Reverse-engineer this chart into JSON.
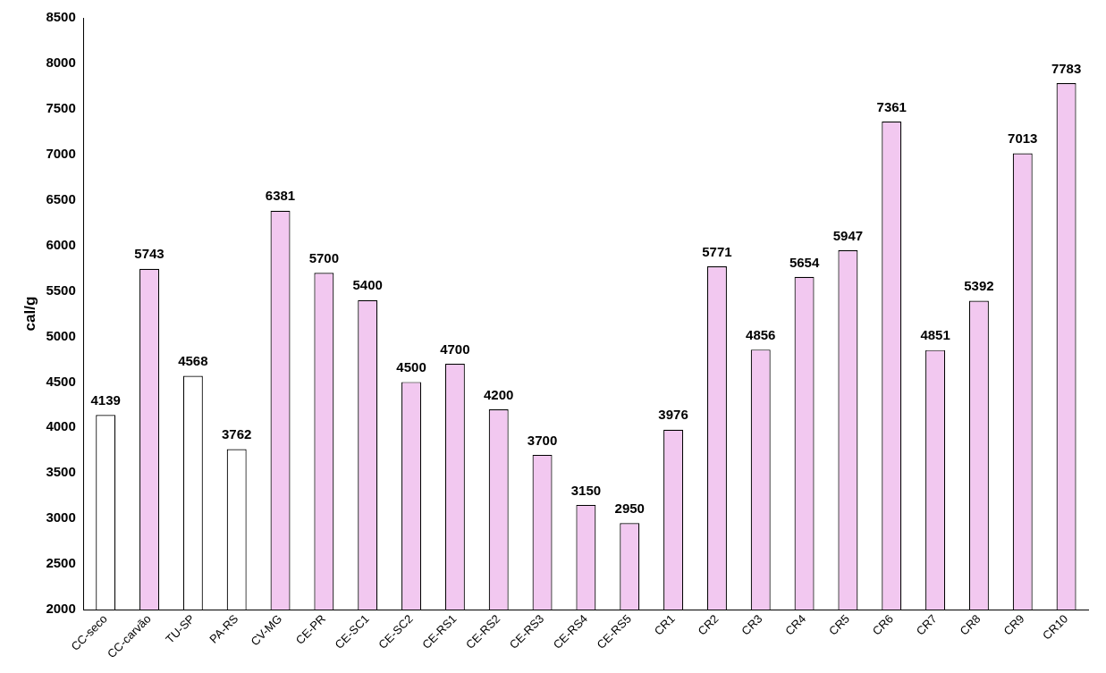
{
  "chart_data": {
    "type": "bar",
    "ylabel": "cal/g",
    "categories": [
      "CC-seco",
      "CC-carvão",
      "TU-SP",
      "PA-RS",
      "CV-MG",
      "CE-PR",
      "CE-SC1",
      "CE-SC2",
      "CE-RS1",
      "CE-RS2",
      "CE-RS3",
      "CE-RS4",
      "CE-RS5",
      "CR1",
      "CR2",
      "CR3",
      "CR4",
      "CR5",
      "CR6",
      "CR7",
      "CR8",
      "CR9",
      "CR10"
    ],
    "values": [
      4139,
      5743,
      4568,
      3762,
      6381,
      5700,
      5400,
      4500,
      4700,
      4200,
      3700,
      3150,
      2950,
      3976,
      5771,
      4856,
      5654,
      5947,
      7361,
      4851,
      5392,
      7013,
      7783
    ],
    "colors": [
      "#ffffff",
      "#f2c8f0",
      "#ffffff",
      "#ffffff",
      "#f2c8f0",
      "#f2c8f0",
      "#f2c8f0",
      "#f2c8f0",
      "#f2c8f0",
      "#f2c8f0",
      "#f2c8f0",
      "#f2c8f0",
      "#f2c8f0",
      "#f2c8f0",
      "#f2c8f0",
      "#f2c8f0",
      "#f2c8f0",
      "#f2c8f0",
      "#f2c8f0",
      "#f2c8f0",
      "#f2c8f0",
      "#f2c8f0",
      "#f2c8f0"
    ],
    "ylim": [
      2000,
      8500
    ],
    "yticks": [
      2000,
      2500,
      3000,
      3500,
      4000,
      4500,
      5000,
      5500,
      6000,
      6500,
      7000,
      7500,
      8000,
      8500
    ],
    "grid": false,
    "legend": false,
    "data_labels": true
  }
}
